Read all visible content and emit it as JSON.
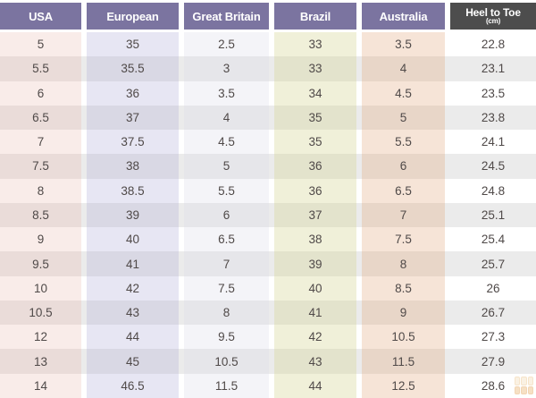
{
  "table": {
    "headers": [
      {
        "label": "USA"
      },
      {
        "label": "European"
      },
      {
        "label": "Great Britain"
      },
      {
        "label": "Brazil"
      },
      {
        "label": "Australia"
      },
      {
        "label": "Heel to Toe",
        "sublabel": "(cm)"
      }
    ],
    "rows": [
      [
        "5",
        "35",
        "2.5",
        "33",
        "3.5",
        "22.8"
      ],
      [
        "5.5",
        "35.5",
        "3",
        "33",
        "4",
        "23.1"
      ],
      [
        "6",
        "36",
        "3.5",
        "34",
        "4.5",
        "23.5"
      ],
      [
        "6.5",
        "37",
        "4",
        "35",
        "5",
        "23.8"
      ],
      [
        "7",
        "37.5",
        "4.5",
        "35",
        "5.5",
        "24.1"
      ],
      [
        "7.5",
        "38",
        "5",
        "36",
        "6",
        "24.5"
      ],
      [
        "8",
        "38.5",
        "5.5",
        "36",
        "6.5",
        "24.8"
      ],
      [
        "8.5",
        "39",
        "6",
        "37",
        "7",
        "25.1"
      ],
      [
        "9",
        "40",
        "6.5",
        "38",
        "7.5",
        "25.4"
      ],
      [
        "9.5",
        "41",
        "7",
        "39",
        "8",
        "25.7"
      ],
      [
        "10",
        "42",
        "7.5",
        "40",
        "8.5",
        "26"
      ],
      [
        "10.5",
        "43",
        "8",
        "41",
        "9",
        "26.7"
      ],
      [
        "12",
        "44",
        "9.5",
        "42",
        "10.5",
        "27.3"
      ],
      [
        "13",
        "45",
        "10.5",
        "43",
        "11.5",
        "27.9"
      ],
      [
        "14",
        "46.5",
        "11.5",
        "44",
        "12.5",
        "28.6"
      ]
    ]
  },
  "chart_data": {
    "type": "table",
    "columns": [
      "USA",
      "European",
      "Great Britain",
      "Brazil",
      "Australia",
      "Heel to Toe (cm)"
    ],
    "rows": [
      [
        "5",
        "35",
        "2.5",
        "33",
        "3.5",
        "22.8"
      ],
      [
        "5.5",
        "35.5",
        "3",
        "33",
        "4",
        "23.1"
      ],
      [
        "6",
        "36",
        "3.5",
        "34",
        "4.5",
        "23.5"
      ],
      [
        "6.5",
        "37",
        "4",
        "35",
        "5",
        "23.8"
      ],
      [
        "7",
        "37.5",
        "4.5",
        "35",
        "5.5",
        "24.1"
      ],
      [
        "7.5",
        "38",
        "5",
        "36",
        "6",
        "24.5"
      ],
      [
        "8",
        "38.5",
        "5.5",
        "36",
        "6.5",
        "24.8"
      ],
      [
        "8.5",
        "39",
        "6",
        "37",
        "7",
        "25.1"
      ],
      [
        "9",
        "40",
        "6.5",
        "38",
        "7.5",
        "25.4"
      ],
      [
        "9.5",
        "41",
        "7",
        "39",
        "8",
        "25.7"
      ],
      [
        "10",
        "42",
        "7.5",
        "40",
        "8.5",
        "26"
      ],
      [
        "10.5",
        "43",
        "8",
        "41",
        "9",
        "26.7"
      ],
      [
        "12",
        "44",
        "9.5",
        "42",
        "10.5",
        "27.3"
      ],
      [
        "13",
        "45",
        "10.5",
        "43",
        "11.5",
        "27.9"
      ],
      [
        "14",
        "46.5",
        "11.5",
        "44",
        "12.5",
        "28.6"
      ]
    ],
    "legend_position": "none",
    "grid": false
  },
  "colors": {
    "header_purple": "#7b74a0",
    "header_dark": "#4d4d4d",
    "header_text": "#ffffff",
    "cell_text": "#4f4948",
    "row_stripe": "#ebebeb",
    "col_usa": "#f9ece9",
    "col_european": "#e7e6f3",
    "col_great_britain": "#f4f4f8",
    "col_brazil": "#f0f0d9",
    "col_australia": "#f6e4d7",
    "col_heel_to_toe": "#ffffff"
  },
  "watermark": {
    "icon": "grid-logo-icon"
  }
}
